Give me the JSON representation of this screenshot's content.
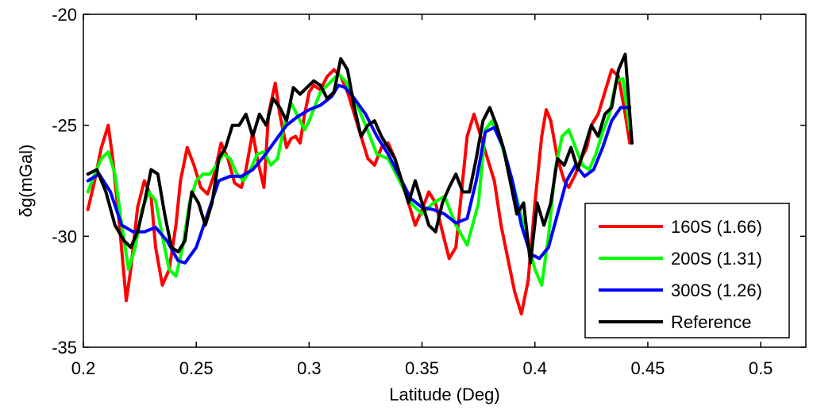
{
  "chart_data": {
    "type": "line",
    "title": "",
    "xlabel": "Latitude (Deg)",
    "ylabel": "δg(mGal)",
    "xlim": [
      0.2,
      0.52
    ],
    "ylim": [
      -35,
      -20
    ],
    "xticks": [
      0.2,
      0.25,
      0.3,
      0.35,
      0.4,
      0.45,
      0.5
    ],
    "xtick_labels": [
      "0.2",
      "0.25",
      "0.3",
      "0.35",
      "0.4",
      "0.45",
      "0.5"
    ],
    "yticks": [
      -35,
      -30,
      -25,
      -20
    ],
    "ytick_labels": [
      "-35",
      "-30",
      "-25",
      "-20"
    ],
    "grid": false,
    "legend_position": "bottom-right",
    "series": [
      {
        "name": "160S (1.66)",
        "color": "#ff0000",
        "x": [
          0.202,
          0.205,
          0.208,
          0.211,
          0.213,
          0.216,
          0.219,
          0.221,
          0.224,
          0.227,
          0.23,
          0.232,
          0.235,
          0.238,
          0.241,
          0.243,
          0.246,
          0.249,
          0.252,
          0.255,
          0.258,
          0.261,
          0.264,
          0.267,
          0.27,
          0.272,
          0.275,
          0.277,
          0.28,
          0.282,
          0.285,
          0.287,
          0.29,
          0.292,
          0.294,
          0.296,
          0.298,
          0.3,
          0.302,
          0.305,
          0.308,
          0.311,
          0.314,
          0.317,
          0.32,
          0.323,
          0.326,
          0.329,
          0.332,
          0.335,
          0.338,
          0.341,
          0.344,
          0.347,
          0.35,
          0.353,
          0.356,
          0.359,
          0.362,
          0.365,
          0.367,
          0.37,
          0.373,
          0.376,
          0.379,
          0.382,
          0.385,
          0.388,
          0.391,
          0.394,
          0.397,
          0.4,
          0.403,
          0.405,
          0.407,
          0.41,
          0.413,
          0.415,
          0.418,
          0.42,
          0.423,
          0.425,
          0.428,
          0.431,
          0.434,
          0.437,
          0.44,
          0.442
        ],
        "y": [
          -28.8,
          -27.5,
          -26,
          -25,
          -26.5,
          -29.5,
          -32.9,
          -31.5,
          -28.7,
          -27.5,
          -28.2,
          -30.5,
          -32.2,
          -31.5,
          -29.5,
          -27.5,
          -26,
          -26.8,
          -27.8,
          -28.1,
          -27.2,
          -25.8,
          -26.5,
          -27.6,
          -27.8,
          -27,
          -25.3,
          -26.5,
          -27.8,
          -24.5,
          -23.1,
          -24.5,
          -26,
          -25.6,
          -25.5,
          -25.8,
          -24.5,
          -23.5,
          -23.2,
          -23.4,
          -22.8,
          -22.5,
          -22.8,
          -23.5,
          -24.5,
          -25.5,
          -26.5,
          -26.8,
          -26,
          -25.8,
          -26.5,
          -27.5,
          -28.5,
          -29.5,
          -28.8,
          -28,
          -28.5,
          -29.8,
          -31,
          -30.5,
          -28.5,
          -25.5,
          -24.5,
          -25.5,
          -26.5,
          -27.5,
          -29.5,
          -31,
          -32.5,
          -33.5,
          -32,
          -28.5,
          -25.5,
          -24.3,
          -24.8,
          -26.5,
          -27.5,
          -27.8,
          -27.2,
          -26.6,
          -26,
          -25,
          -24.5,
          -23.5,
          -22.5,
          -22.8,
          -24.5,
          -25.8
        ]
      },
      {
        "name": "200S (1.31)",
        "color": "#00ff00",
        "x": [
          0.202,
          0.205,
          0.208,
          0.211,
          0.214,
          0.217,
          0.22,
          0.223,
          0.226,
          0.229,
          0.232,
          0.235,
          0.238,
          0.241,
          0.244,
          0.247,
          0.25,
          0.253,
          0.256,
          0.259,
          0.262,
          0.265,
          0.268,
          0.271,
          0.274,
          0.277,
          0.28,
          0.283,
          0.286,
          0.289,
          0.292,
          0.295,
          0.298,
          0.3,
          0.305,
          0.31,
          0.313,
          0.316,
          0.32,
          0.325,
          0.33,
          0.335,
          0.34,
          0.345,
          0.35,
          0.355,
          0.36,
          0.365,
          0.37,
          0.375,
          0.378,
          0.381,
          0.385,
          0.39,
          0.395,
          0.4,
          0.403,
          0.406,
          0.409,
          0.412,
          0.415,
          0.418,
          0.421,
          0.424,
          0.427,
          0.43,
          0.433,
          0.436,
          0.439,
          0.442
        ],
        "y": [
          -28,
          -27.2,
          -26.5,
          -26.2,
          -27.2,
          -29.5,
          -31.5,
          -30.5,
          -28.8,
          -28,
          -28.4,
          -30,
          -31.5,
          -31.8,
          -30.5,
          -28.5,
          -27.5,
          -27.2,
          -27.2,
          -26.8,
          -26.3,
          -26.5,
          -27.2,
          -27.5,
          -27,
          -26.3,
          -26.2,
          -26.8,
          -26.5,
          -25,
          -24,
          -24.6,
          -25.2,
          -24.8,
          -23.5,
          -23,
          -22.7,
          -23,
          -23.8,
          -25,
          -26.3,
          -26.5,
          -27.5,
          -28.5,
          -29,
          -28.5,
          -28.2,
          -29.5,
          -30.4,
          -28.5,
          -25.2,
          -24.8,
          -25.8,
          -27.5,
          -29.5,
          -31.5,
          -32.2,
          -30,
          -27,
          -25.5,
          -25.2,
          -26,
          -26.8,
          -27,
          -26.3,
          -25.3,
          -24.5,
          -23,
          -22.9,
          -25.2
        ]
      },
      {
        "name": "300S (1.26)",
        "color": "#0000ff",
        "x": [
          0.202,
          0.207,
          0.212,
          0.217,
          0.222,
          0.227,
          0.232,
          0.237,
          0.242,
          0.245,
          0.25,
          0.255,
          0.26,
          0.265,
          0.27,
          0.275,
          0.28,
          0.285,
          0.29,
          0.295,
          0.3,
          0.305,
          0.31,
          0.313,
          0.316,
          0.32,
          0.325,
          0.33,
          0.335,
          0.34,
          0.345,
          0.35,
          0.355,
          0.36,
          0.365,
          0.37,
          0.374,
          0.378,
          0.382,
          0.386,
          0.39,
          0.394,
          0.398,
          0.402,
          0.406,
          0.41,
          0.414,
          0.418,
          0.422,
          0.426,
          0.43,
          0.434,
          0.438,
          0.442
        ],
        "y": [
          -27.5,
          -27.2,
          -28,
          -29.5,
          -29.8,
          -29.8,
          -29.6,
          -30.2,
          -31.1,
          -31.2,
          -30.5,
          -29,
          -27.5,
          -27.3,
          -27.3,
          -27,
          -26.4,
          -25.7,
          -25,
          -24.6,
          -24.3,
          -24.1,
          -23.7,
          -23.2,
          -23.3,
          -23.8,
          -24.5,
          -25.5,
          -26.3,
          -27.3,
          -28.3,
          -28.7,
          -28.8,
          -29,
          -29.4,
          -29.2,
          -27.5,
          -25.3,
          -25.1,
          -26,
          -27.5,
          -29.5,
          -30.8,
          -31,
          -30.5,
          -29,
          -27.5,
          -26.8,
          -27.3,
          -27,
          -26,
          -24.8,
          -24.2,
          -24.2
        ]
      },
      {
        "name": "Reference",
        "color": "#000000",
        "x": [
          0.202,
          0.206,
          0.21,
          0.214,
          0.218,
          0.221,
          0.224,
          0.227,
          0.23,
          0.233,
          0.236,
          0.239,
          0.242,
          0.245,
          0.248,
          0.251,
          0.254,
          0.257,
          0.26,
          0.263,
          0.266,
          0.269,
          0.272,
          0.275,
          0.278,
          0.281,
          0.284,
          0.287,
          0.29,
          0.293,
          0.296,
          0.299,
          0.302,
          0.305,
          0.308,
          0.311,
          0.314,
          0.317,
          0.32,
          0.323,
          0.326,
          0.329,
          0.332,
          0.335,
          0.338,
          0.341,
          0.344,
          0.347,
          0.35,
          0.353,
          0.356,
          0.359,
          0.362,
          0.365,
          0.368,
          0.371,
          0.374,
          0.377,
          0.38,
          0.383,
          0.386,
          0.389,
          0.392,
          0.395,
          0.398,
          0.401,
          0.404,
          0.407,
          0.41,
          0.413,
          0.416,
          0.419,
          0.422,
          0.425,
          0.428,
          0.431,
          0.434,
          0.437,
          0.44,
          0.443
        ],
        "y": [
          -27.2,
          -27,
          -28,
          -29.5,
          -30.2,
          -30.5,
          -29.8,
          -28.5,
          -27,
          -27.2,
          -29,
          -30.5,
          -30.7,
          -30.2,
          -28,
          -28.5,
          -29.5,
          -28.5,
          -26.5,
          -26,
          -25,
          -25,
          -24.5,
          -25.5,
          -24.5,
          -25,
          -23.8,
          -24.2,
          -24.8,
          -23.3,
          -23.6,
          -23.3,
          -23,
          -23.2,
          -23.8,
          -23.5,
          -22,
          -22.5,
          -24.2,
          -25.5,
          -25,
          -24.8,
          -25.5,
          -26,
          -26.5,
          -27.5,
          -28.5,
          -27.5,
          -28.5,
          -29.5,
          -29.8,
          -28.5,
          -27.8,
          -27.2,
          -28,
          -28,
          -26.5,
          -24.8,
          -24.2,
          -25,
          -26,
          -27.5,
          -29,
          -28.5,
          -31.2,
          -28.5,
          -29.5,
          -28.5,
          -26.5,
          -26.8,
          -26,
          -27,
          -26,
          -25,
          -25.5,
          -24.5,
          -24.2,
          -22.5,
          -21.8,
          -25.8
        ]
      }
    ]
  }
}
